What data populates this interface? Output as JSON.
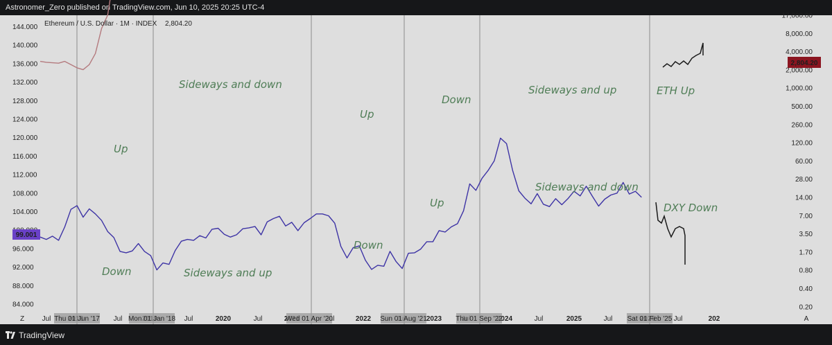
{
  "header": {
    "byline": "Astronomer_Zero published on TradingView.com, Jun 10, 2025 20:25 UTC-4"
  },
  "footer": {
    "brand": "TradingView",
    "logo_icon": "tradingview-logo-icon"
  },
  "chart_data": {
    "type": "line",
    "legend": {
      "symbol": "Ethereum / U.S. Dollar · 1M · INDEX",
      "value": "2,804.20"
    },
    "left_axis": {
      "ticks": [
        "144.000",
        "140.000",
        "136.000",
        "132.000",
        "128.000",
        "124.000",
        "120.000",
        "116.000",
        "112.000",
        "108.000",
        "104.000",
        "100.000",
        "96.000",
        "92.000",
        "88.000",
        "84.000"
      ],
      "range": [
        82,
        146
      ]
    },
    "right_axis": {
      "ticks": [
        "17,000.00",
        "8,000.00",
        "4,000.00",
        "2,000.00",
        "1,000.00",
        "500.00",
        "260.00",
        "120.00",
        "60.00",
        "28.00",
        "14.00",
        "7.00",
        "3.50",
        "1.70",
        "0.80",
        "0.40",
        "0.20"
      ],
      "scale": "log"
    },
    "x_axis": {
      "ticks": [
        "Jul",
        "2018",
        "Jul",
        "2019",
        "Jul",
        "2020",
        "Jul",
        "2021",
        "Jul",
        "2022",
        "Jul",
        "2023",
        "Jul",
        "2024",
        "Jul",
        "2025",
        "Jul",
        "2026",
        "Jul",
        "202"
      ]
    },
    "date_badges": [
      "Thu 01 Jun '17",
      "Mon 01 Jan '18",
      "Wed 01 Apr '20",
      "Sun 01 Aug '21",
      "Thu 01 Sep '22",
      "Sat 01 Feb '25"
    ],
    "price_badges": {
      "eth": "2,804.20",
      "dxy": "99.001"
    },
    "series": [
      {
        "color": "#b47a7e",
        "y": [
          136.5,
          136.3,
          136.2,
          136.1,
          136.5,
          135.8,
          135.1,
          134.7,
          135.8,
          138.2,
          143.6,
          146.5,
          155.0,
          156.2,
          154.4,
          157.8,
          156.6,
          156.6,
          158.2,
          160.6,
          162.3,
          161.3,
          159.4,
          157.3,
          159.6,
          159.1,
          157.8,
          156.6,
          155.9,
          155.1,
          153.4,
          153.9,
          152.8,
          153.8,
          154.3,
          155.5,
          156.8,
          155.9,
          154.6,
          154.9,
          154.6,
          155.4,
          154.5,
          154.0,
          155.0,
          156.1,
          155.0,
          156.4,
          156.4,
          158.6,
          157.8,
          158.5,
          160.4,
          161.1,
          163.1,
          163.3,
          164.5,
          164.3,
          164.4,
          165.3,
          166.0,
          166.4,
          165.9,
          165.2,
          165.2,
          165.3,
          163.7,
          161.6,
          162.8,
          162.5,
          162.1,
          162.0,
          162.4,
          162.6,
          162.6,
          162.7,
          162.8,
          162.8,
          162.6,
          162.7,
          163.0,
          163.5,
          163.3,
          163.9,
          164.6,
          164.3,
          164.7,
          164.1,
          164.3,
          164.0,
          164.2,
          164.2,
          163.9,
          164.7,
          164.4,
          164.4,
          163.5,
          163.1,
          163.0
        ]
      },
      {
        "color": "#3d33a5",
        "y": [
          98.5,
          98.0,
          98.7,
          97.8,
          100.7,
          104.5,
          105.3,
          102.8,
          104.6,
          103.5,
          102.1,
          99.7,
          98.4,
          95.4,
          95.1,
          95.5,
          97.1,
          95.4,
          94.5,
          91.4,
          92.9,
          92.6,
          95.6,
          97.6,
          98.0,
          97.8,
          98.8,
          98.3,
          100.2,
          100.4,
          99.1,
          98.5,
          99.0,
          100.3,
          100.5,
          100.8,
          99.0,
          101.8,
          102.5,
          103.0,
          100.9,
          101.7,
          99.9,
          101.6,
          102.5,
          103.5,
          103.5,
          103.1,
          101.5,
          96.5,
          94.0,
          96.2,
          96.6,
          93.5,
          91.5,
          92.4,
          92.2,
          95.4,
          93.2,
          91.7,
          95.0,
          95.1,
          95.9,
          97.5,
          97.5,
          99.9,
          99.6,
          100.7,
          101.4,
          104.2,
          110.0,
          108.6,
          111.2,
          112.9,
          115.0,
          119.9,
          118.7,
          112.9,
          108.5,
          106.9,
          105.7,
          107.9,
          105.6,
          105.1,
          106.8,
          105.5,
          106.8,
          108.4,
          107.4,
          109.5,
          107.3,
          105.2,
          106.7,
          107.6,
          108.0,
          110.3,
          107.8,
          108.4,
          107.1
        ]
      }
    ],
    "annotations": [
      "Sideways and down",
      "Up",
      "Up",
      "Down",
      "Sideways and up",
      "ETH Up",
      "Sideways and down",
      "Up",
      "Down",
      "DXY Down",
      "Down",
      "Sideways and up"
    ]
  }
}
